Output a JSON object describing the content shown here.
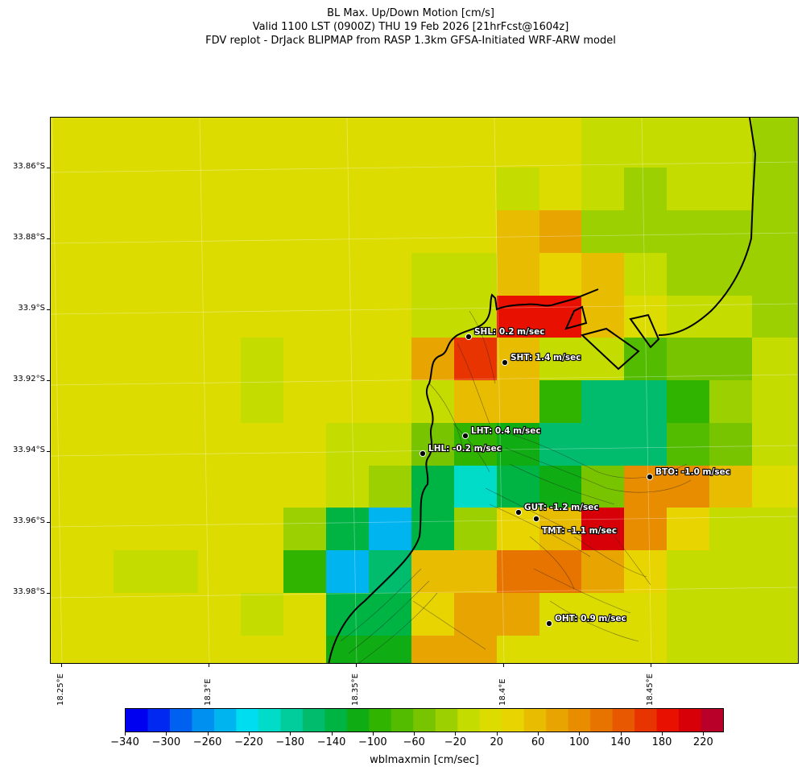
{
  "title": {
    "line1": "BL Max. Up/Down Motion [cm/s]",
    "line2": "Valid 1100 LST (0900Z) THU 19 Feb 2026 [21hrFcst@1604z]",
    "line3": "FDV replot - DrJack BLIPMAP from RASP 1.3km GFSA-Initiated WRF-ARW model"
  },
  "axes": {
    "lat_labels": [
      "33.86°S",
      "33.88°S",
      "33.9°S",
      "33.92°S",
      "33.94°S",
      "33.96°S",
      "33.98°S"
    ],
    "lon_labels": [
      "18.25°E",
      "18.3°E",
      "18.35°E",
      "18.4°E",
      "18.45°E"
    ]
  },
  "colorbar": {
    "label": "wblmaxmin [cm/sec]",
    "ticks": [
      "−340",
      "−300",
      "−260",
      "−220",
      "−180",
      "−140",
      "−100",
      "−60",
      "−20",
      "20",
      "60",
      "100",
      "140",
      "180",
      "220"
    ],
    "colors": [
      "#0000f0",
      "#0028f0",
      "#0060f0",
      "#0090f0",
      "#00b4f0",
      "#00dcf0",
      "#00dcc8",
      "#00cc9c",
      "#00bc6c",
      "#00b444",
      "#10ac14",
      "#30b400",
      "#54bc00",
      "#78c400",
      "#9cd000",
      "#c4dc00",
      "#dcdc00",
      "#e8d400",
      "#e8bc00",
      "#e8a400",
      "#e88c00",
      "#e87400",
      "#e85800",
      "#e83400",
      "#e81000",
      "#d80008",
      "#b80028"
    ]
  },
  "stations": [
    {
      "label": "SHL: 0.2 m/sec"
    },
    {
      "label": "SHT: 1.4 m/sec"
    },
    {
      "label": "LHT: 0.4 m/sec"
    },
    {
      "label": "LHL: -0.2 m/sec"
    },
    {
      "label": "BTO: -1.0 m/sec"
    },
    {
      "label": "GUT: -1.2 m/sec"
    },
    {
      "label": "TMT: -1.1 m/sec"
    },
    {
      "label": "OHT: 0.9 m/sec"
    }
  ]
}
